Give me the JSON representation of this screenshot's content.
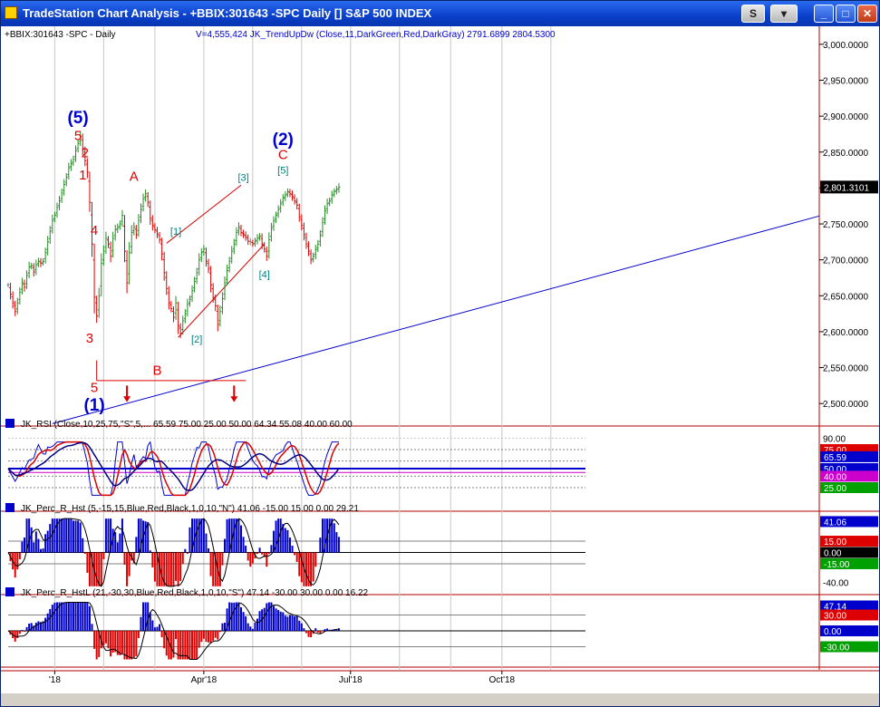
{
  "window": {
    "title": "TradeStation Chart Analysis - +BBIX:301643 -SPC Daily [] S&P 500 INDEX",
    "buttons": [
      {
        "name": "s-button",
        "label": "S"
      },
      {
        "name": "dropdown-button",
        "label": "▾"
      },
      {
        "name": "minimize-button",
        "label": "_"
      },
      {
        "name": "maximize-button",
        "label": "□"
      },
      {
        "name": "close-button",
        "label": "✕"
      }
    ]
  },
  "colors": {
    "up": "#228b22",
    "down": "#dd0000",
    "neutral": "#808080",
    "wave_blue": "#0000cc",
    "wave_red": "#dd0000",
    "wave_teal": "#008080"
  },
  "chart_data": [
    {
      "type": "ohlc",
      "header_left": "+BBIX:301643 -SPC - Daily",
      "header_right": "V=4,555,424  JK_TrendUpDw (Close,11,DarkGreen,Red,DarkGray)  2791.6899  2804.5300",
      "y_ticks": [
        "3,000.0000",
        "2,950.0000",
        "2,900.0000",
        "2,850.0000",
        "2,800.0000",
        "2,750.0000",
        "2,700.0000",
        "2,650.0000",
        "2,600.0000",
        "2,550.0000",
        "2,500.0000"
      ],
      "ylim": [
        2475,
        3015
      ],
      "last_value": "2,801.3101",
      "x_ticks": [
        {
          "label": "'18",
          "index": 20
        },
        {
          "label": "Apr'18",
          "index": 84
        },
        {
          "label": "Jul'18",
          "index": 147
        },
        {
          "label": "Oct'18",
          "index": 212
        }
      ],
      "closes": [
        2665,
        2652,
        2640,
        2628,
        2640,
        2655,
        2668,
        2662,
        2678,
        2690,
        2692,
        2683,
        2693,
        2698,
        2695,
        2698,
        2710,
        2725,
        2740,
        2755,
        2762,
        2773,
        2782,
        2793,
        2805,
        2815,
        2828,
        2834,
        2840,
        2852,
        2862,
        2872,
        2855,
        2838,
        2822,
        2780,
        2722,
        2648,
        2622,
        2650,
        2695,
        2712,
        2730,
        2722,
        2705,
        2730,
        2742,
        2745,
        2750,
        2762,
        2712,
        2668,
        2710,
        2738,
        2746,
        2735,
        2755,
        2770,
        2785,
        2792,
        2780,
        2758,
        2748,
        2742,
        2736,
        2728,
        2708,
        2682,
        2660,
        2640,
        2632,
        2620,
        2640,
        2608,
        2598,
        2615,
        2625,
        2638,
        2645,
        2657,
        2670,
        2682,
        2700,
        2710,
        2715,
        2698,
        2688,
        2665,
        2648,
        2636,
        2610,
        2628,
        2646,
        2668,
        2685,
        2698,
        2712,
        2722,
        2738,
        2746,
        2738,
        2735,
        2732,
        2726,
        2725,
        2722,
        2726,
        2730,
        2733,
        2722,
        2715,
        2705,
        2728,
        2744,
        2754,
        2762,
        2770,
        2778,
        2786,
        2790,
        2795,
        2792,
        2788,
        2782,
        2776,
        2760,
        2748,
        2735,
        2722,
        2712,
        2700,
        2705,
        2714,
        2722,
        2734,
        2752,
        2768,
        2778,
        2782,
        2790,
        2795,
        2798,
        2801
      ],
      "annotations": [
        {
          "text": "(5)",
          "index": 30,
          "price": 2890,
          "color": "blue"
        },
        {
          "text": "5",
          "index": 30,
          "price": 2867,
          "color": "red"
        },
        {
          "text": "2",
          "index": 33,
          "price": 2843,
          "color": "red"
        },
        {
          "text": "1",
          "index": 32,
          "price": 2812,
          "color": "red"
        },
        {
          "text": "4",
          "index": 37,
          "price": 2735,
          "color": "red"
        },
        {
          "text": "3",
          "index": 35,
          "price": 2585,
          "color": "red"
        },
        {
          "text": "5",
          "index": 37,
          "price": 2516,
          "color": "red"
        },
        {
          "text": "(1)",
          "index": 37,
          "price": 2490,
          "color": "blue"
        },
        {
          "text": "A",
          "index": 54,
          "price": 2810,
          "color": "red"
        },
        {
          "text": "B",
          "index": 64,
          "price": 2540,
          "color": "red"
        },
        {
          "text": "[1]",
          "index": 72,
          "price": 2735,
          "color": "teal"
        },
        {
          "text": "[2]",
          "index": 81,
          "price": 2585,
          "color": "teal"
        },
        {
          "text": "[3]",
          "index": 101,
          "price": 2810,
          "color": "teal"
        },
        {
          "text": "[4]",
          "index": 110,
          "price": 2675,
          "color": "teal"
        },
        {
          "text": "[5]",
          "index": 118,
          "price": 2820,
          "color": "teal"
        },
        {
          "text": "C",
          "index": 118,
          "price": 2840,
          "color": "red"
        },
        {
          "text": "(2)",
          "index": 118,
          "price": 2860,
          "color": "blue"
        }
      ]
    },
    {
      "type": "line",
      "header": "JK_RSI (Close,10,25,75,\"S\",5,...  65.59  75.00  25.00  50.00  64.34  55.08  40.00  60.00",
      "ylim": [
        0,
        100
      ],
      "y_ticks": [
        "90.00"
      ],
      "labels": [
        {
          "text": "75.00",
          "value": 75,
          "bg": "#dd0000",
          "fg": "#ffffff"
        },
        {
          "text": "65.59",
          "value": 65.59,
          "bg": "#0000cc",
          "fg": "#ffffff"
        },
        {
          "text": "50.00",
          "value": 50,
          "bg": "#0000cc",
          "fg": "#ffffff"
        },
        {
          "text": "40.00",
          "value": 40,
          "bg": "#cc00cc",
          "fg": "#ffffff"
        },
        {
          "text": "25.00",
          "value": 25,
          "bg": "#00a000",
          "fg": "#ffffff"
        }
      ]
    },
    {
      "type": "histogram",
      "header": "JK_Perc_R_Hst (5,-15,15,Blue,Red,Black,1,0,10,\"N\")  41.06  -15.00  15.00  0.00  29.21",
      "ylim": [
        -50,
        50
      ],
      "y_ticks": [
        "-40.00"
      ],
      "labels": [
        {
          "text": "41.06",
          "value": 41.06,
          "bg": "#0000cc",
          "fg": "#ffffff"
        },
        {
          "text": "15.00",
          "value": 15,
          "bg": "#dd0000",
          "fg": "#ffffff"
        },
        {
          "text": "0.00",
          "value": 0,
          "bg": "#000000",
          "fg": "#ffffff"
        },
        {
          "text": "-15.00",
          "value": -15,
          "bg": "#00a000",
          "fg": "#ffffff"
        }
      ]
    },
    {
      "type": "histogram",
      "header": "JK_Perc_R_HstL (21,-30,30,Blue,Red,Black,1,0,10,\"S\")  47.14  -30.00  30.00  0.00  16.22",
      "ylim": [
        -60,
        60
      ],
      "labels": [
        {
          "text": "47.14",
          "value": 47.14,
          "bg": "#0000cc",
          "fg": "#ffffff"
        },
        {
          "text": "30.00",
          "value": 30,
          "bg": "#dd0000",
          "fg": "#ffffff"
        },
        {
          "text": "0.00",
          "value": 0,
          "bg": "#0000cc",
          "fg": "#ffffff"
        },
        {
          "text": "-30.00",
          "value": -30,
          "bg": "#00a000",
          "fg": "#ffffff"
        }
      ]
    }
  ]
}
